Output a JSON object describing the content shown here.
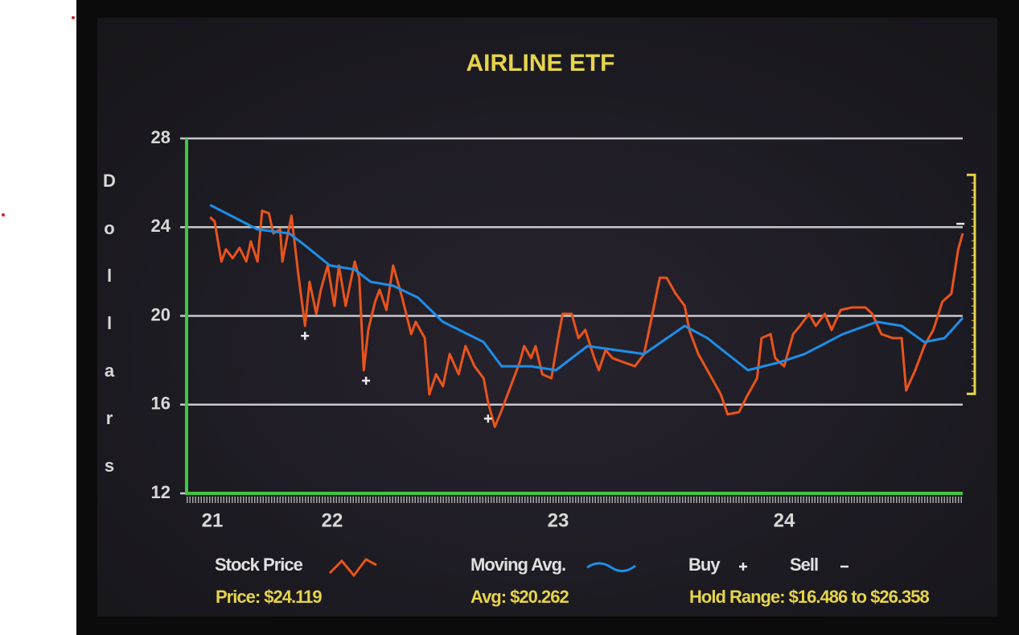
{
  "chart_data": {
    "type": "line",
    "title": "AIRLINE ETF",
    "ylabel": "Dollars",
    "xlim": [
      21.356,
      24.79
    ],
    "ylim": [
      12,
      28
    ],
    "xticks": [
      {
        "value": 21.47,
        "label": "21"
      },
      22,
      23,
      24
    ],
    "yticks": [
      12,
      16,
      20,
      24,
      28
    ],
    "grid": true,
    "series": [
      {
        "name": "Stock Price",
        "color": "#e8541c",
        "x": [
          21.46,
          21.48,
          21.51,
          21.53,
          21.56,
          21.59,
          21.62,
          21.64,
          21.67,
          21.69,
          21.72,
          21.74,
          21.77,
          21.78,
          21.82,
          21.85,
          21.88,
          21.9,
          21.93,
          21.95,
          21.98,
          22.01,
          22.03,
          22.06,
          22.1,
          22.12,
          22.14,
          22.16,
          22.19,
          22.21,
          22.24,
          22.27,
          22.31,
          22.35,
          22.37,
          22.41,
          22.43,
          22.46,
          22.49,
          22.52,
          22.56,
          22.59,
          22.63,
          22.67,
          22.69,
          22.72,
          22.75,
          22.79,
          22.83,
          22.85,
          22.88,
          22.9,
          22.93,
          22.97,
          23.0,
          23.02,
          23.06,
          23.09,
          23.12,
          23.16,
          23.18,
          23.21,
          23.24,
          23.29,
          23.34,
          23.38,
          23.41,
          23.45,
          23.48,
          23.52,
          23.56,
          23.58,
          23.62,
          23.66,
          23.72,
          23.75,
          23.8,
          23.84,
          23.88,
          23.9,
          23.94,
          23.96,
          24.0,
          24.04,
          24.07,
          24.11,
          24.14,
          24.18,
          24.21,
          24.25,
          24.3,
          24.36,
          24.39,
          24.43,
          24.48,
          24.52,
          24.54,
          24.58,
          24.62,
          24.66,
          24.7,
          24.74,
          24.77,
          24.79
        ],
        "values": [
          24.45,
          24.26,
          22.45,
          23.0,
          22.6,
          23.07,
          22.45,
          23.36,
          22.45,
          24.74,
          24.63,
          23.72,
          23.9,
          22.45,
          24.52,
          21.9,
          19.55,
          21.54,
          20.09,
          21.18,
          22.27,
          20.45,
          22.27,
          20.45,
          22.45,
          21.72,
          17.55,
          19.37,
          20.64,
          21.18,
          20.27,
          22.27,
          20.82,
          19.18,
          19.73,
          19.0,
          16.46,
          17.37,
          16.83,
          18.28,
          17.37,
          18.64,
          17.73,
          17.19,
          16.1,
          15.0,
          15.74,
          16.83,
          17.91,
          18.64,
          18.1,
          18.64,
          17.37,
          17.19,
          19.0,
          20.09,
          20.09,
          19.0,
          19.37,
          18.1,
          17.55,
          18.46,
          18.1,
          17.91,
          17.73,
          18.28,
          19.73,
          21.72,
          21.72,
          21.0,
          20.45,
          19.37,
          18.28,
          17.55,
          16.46,
          15.56,
          15.66,
          16.46,
          17.19,
          19.0,
          19.18,
          18.1,
          17.73,
          19.18,
          19.55,
          20.09,
          19.55,
          20.09,
          19.37,
          20.27,
          20.38,
          20.38,
          20.09,
          19.18,
          19.0,
          19.0,
          16.64,
          17.55,
          18.64,
          19.37,
          20.64,
          21.0,
          23.0,
          23.72
        ]
      },
      {
        "name": "Moving Avg.",
        "color": "#1e8ee8",
        "x": [
          21.46,
          21.67,
          21.81,
          21.88,
          21.99,
          22.1,
          22.17,
          22.27,
          22.38,
          22.49,
          22.67,
          22.75,
          22.88,
          22.99,
          23.13,
          23.38,
          23.56,
          23.66,
          23.84,
          23.98,
          24.09,
          24.26,
          24.41,
          24.52,
          24.62,
          24.71,
          24.79
        ],
        "values": [
          25.0,
          23.9,
          23.72,
          23.18,
          22.27,
          22.09,
          21.54,
          21.36,
          20.82,
          19.73,
          18.82,
          17.73,
          17.73,
          17.55,
          18.64,
          18.28,
          19.55,
          19.0,
          17.55,
          17.91,
          18.28,
          19.18,
          19.73,
          19.55,
          18.82,
          19.0,
          19.91
        ]
      }
    ],
    "markers": [
      {
        "name": "Buy",
        "color": "#e8e8e8",
        "x": [
          21.88,
          22.15,
          22.69
        ],
        "values": [
          19.1,
          17.08,
          15.37
        ]
      },
      {
        "name": "Sell",
        "color": "#e8e8e8",
        "x": [
          24.78
        ],
        "values": [
          24.15
        ]
      }
    ],
    "hold_range": [
      16.486,
      26.358
    ],
    "annotations": [
      "Price: $24.119",
      "Avg: $20.262",
      "Hold Range: $16.486 to $26.358"
    ]
  }
}
